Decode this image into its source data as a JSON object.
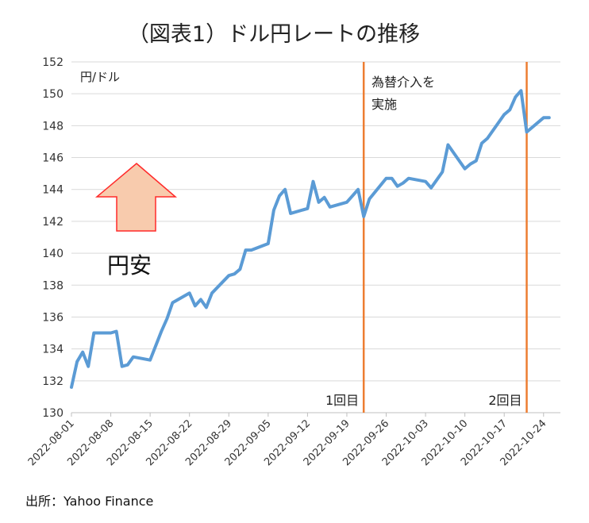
{
  "chart_data": {
    "type": "line",
    "title": "（図表1）ドル円レートの推移",
    "ylabel": "円/ドル",
    "ylim": [
      130,
      152
    ],
    "yticks": [
      130,
      132,
      134,
      136,
      138,
      140,
      142,
      144,
      146,
      148,
      150,
      152
    ],
    "x_date_start": "2022-08-01",
    "xticks": [
      "2022-08-01",
      "2022-08-08",
      "2022-08-15",
      "2022-08-22",
      "2022-08-29",
      "2022-09-05",
      "2022-09-12",
      "2022-09-19",
      "2022-09-26",
      "2022-10-03",
      "2022-10-10",
      "2022-10-17",
      "2022-10-24"
    ],
    "grid": true,
    "series": [
      {
        "color": "#5b9bd5",
        "x": [
          "2022-08-01",
          "2022-08-02",
          "2022-08-03",
          "2022-08-04",
          "2022-08-05",
          "2022-08-08",
          "2022-08-09",
          "2022-08-10",
          "2022-08-11",
          "2022-08-12",
          "2022-08-15",
          "2022-08-16",
          "2022-08-17",
          "2022-08-18",
          "2022-08-19",
          "2022-08-22",
          "2022-08-23",
          "2022-08-24",
          "2022-08-25",
          "2022-08-26",
          "2022-08-29",
          "2022-08-30",
          "2022-08-31",
          "2022-09-01",
          "2022-09-02",
          "2022-09-05",
          "2022-09-06",
          "2022-09-07",
          "2022-09-08",
          "2022-09-09",
          "2022-09-12",
          "2022-09-13",
          "2022-09-14",
          "2022-09-15",
          "2022-09-16",
          "2022-09-19",
          "2022-09-20",
          "2022-09-21",
          "2022-09-22",
          "2022-09-23",
          "2022-09-26",
          "2022-09-27",
          "2022-09-28",
          "2022-09-29",
          "2022-09-30",
          "2022-10-03",
          "2022-10-04",
          "2022-10-05",
          "2022-10-06",
          "2022-10-07",
          "2022-10-10",
          "2022-10-11",
          "2022-10-12",
          "2022-10-13",
          "2022-10-14",
          "2022-10-17",
          "2022-10-18",
          "2022-10-19",
          "2022-10-20",
          "2022-10-21",
          "2022-10-24",
          "2022-10-25"
        ],
        "values": [
          131.6,
          133.2,
          133.8,
          132.9,
          135.0,
          135.0,
          135.1,
          132.9,
          133.0,
          133.5,
          133.3,
          134.2,
          135.1,
          135.9,
          136.9,
          137.5,
          136.7,
          137.1,
          136.6,
          137.5,
          138.6,
          138.7,
          139.0,
          140.2,
          140.2,
          140.6,
          142.7,
          143.6,
          144.0,
          142.5,
          142.8,
          144.5,
          143.2,
          143.5,
          142.9,
          143.2,
          143.6,
          144.0,
          142.3,
          143.4,
          144.7,
          144.7,
          144.2,
          144.4,
          144.7,
          144.5,
          144.1,
          144.6,
          145.1,
          146.8,
          145.3,
          145.6,
          145.8,
          146.9,
          147.2,
          148.7,
          149.0,
          149.8,
          150.2,
          147.6,
          148.5,
          148.5
        ]
      }
    ],
    "events": [
      {
        "date": "2022-09-22",
        "label": "1回目",
        "color": "#ed7d31"
      },
      {
        "date": "2022-10-21",
        "label": "2回目",
        "color": "#ed7d31"
      }
    ],
    "annotation_intervention_line1": "為替介入を",
    "annotation_intervention_line2": "実施",
    "annotation_yen_weak": "円安",
    "source": "出所：Yahoo  Finance"
  }
}
